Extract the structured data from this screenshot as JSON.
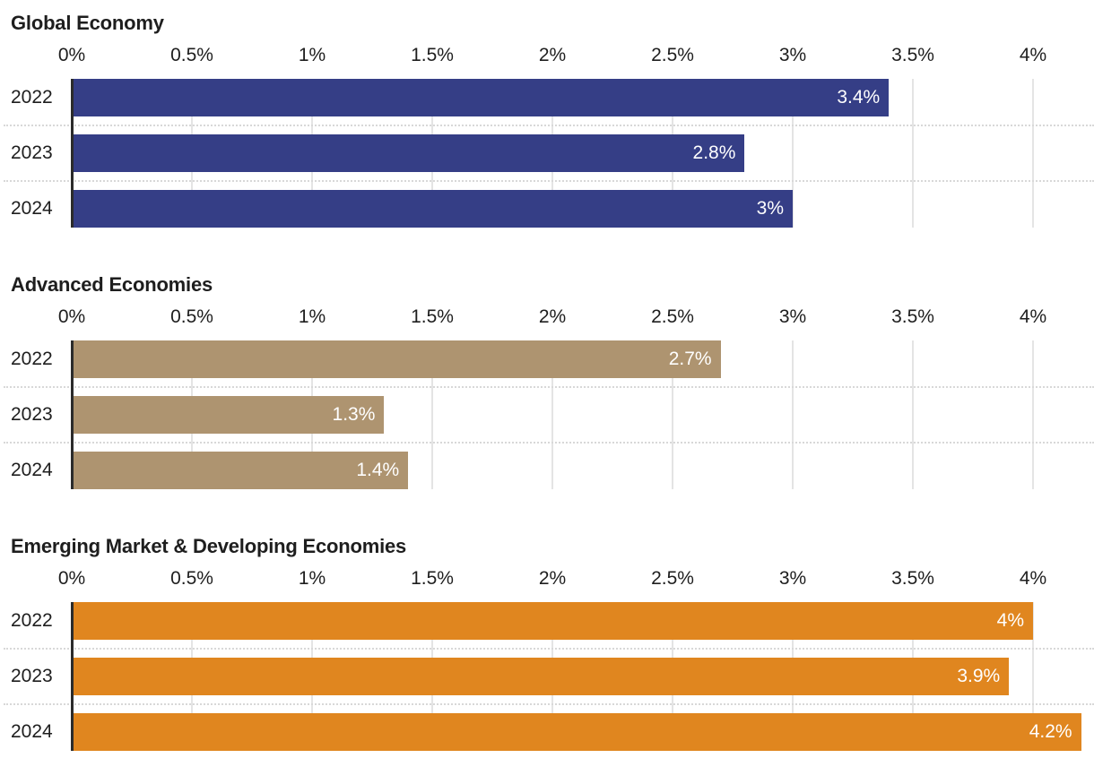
{
  "axis": {
    "max_percent": 4,
    "tick_labels": [
      "0%",
      "0.5%",
      "1%",
      "1.5%",
      "2%",
      "2.5%",
      "3%",
      "3.5%",
      "4%"
    ],
    "tick_values": [
      0,
      0.5,
      1,
      1.5,
      2,
      2.5,
      3,
      3.5,
      4
    ]
  },
  "colors": {
    "global_economy_bar": "#353e86",
    "advanced_economies_bar": "#ae9470",
    "emerging_markets_bar": "#e0861f",
    "gridline": "#e4e4e4",
    "dotted_separator": "#d8d8d8",
    "axis_line": "#2b2b2b",
    "text": "#1e1e1e",
    "bar_value_text": "#ffffff"
  },
  "chart_data": [
    {
      "type": "bar",
      "orientation": "horizontal",
      "title": "Global Economy",
      "categories": [
        "2022",
        "2023",
        "2024"
      ],
      "values": [
        3.4,
        2.8,
        3.0
      ],
      "value_labels": [
        "3.4%",
        "2.8%",
        "3%"
      ],
      "bar_color": "#353e86",
      "xlim": [
        0,
        4
      ],
      "x_tick_labels": [
        "0%",
        "0.5%",
        "1%",
        "1.5%",
        "2%",
        "2.5%",
        "3%",
        "3.5%",
        "4%"
      ],
      "grid": true,
      "legend": false
    },
    {
      "type": "bar",
      "orientation": "horizontal",
      "title": "Advanced Economies",
      "categories": [
        "2022",
        "2023",
        "2024"
      ],
      "values": [
        2.7,
        1.3,
        1.4
      ],
      "value_labels": [
        "2.7%",
        "1.3%",
        "1.4%"
      ],
      "bar_color": "#ae9470",
      "xlim": [
        0,
        4
      ],
      "x_tick_labels": [
        "0%",
        "0.5%",
        "1%",
        "1.5%",
        "2%",
        "2.5%",
        "3%",
        "3.5%",
        "4%"
      ],
      "grid": true,
      "legend": false
    },
    {
      "type": "bar",
      "orientation": "horizontal",
      "title": "Emerging Market & Developing Economies",
      "categories": [
        "2022",
        "2023",
        "2024"
      ],
      "values": [
        4.0,
        3.9,
        4.2
      ],
      "value_labels": [
        "4%",
        "3.9%",
        "4.2%"
      ],
      "bar_color": "#e0861f",
      "xlim": [
        0,
        4
      ],
      "x_tick_labels": [
        "0%",
        "0.5%",
        "1%",
        "1.5%",
        "2%",
        "2.5%",
        "3%",
        "3.5%",
        "4%"
      ],
      "grid": true,
      "legend": false
    }
  ]
}
